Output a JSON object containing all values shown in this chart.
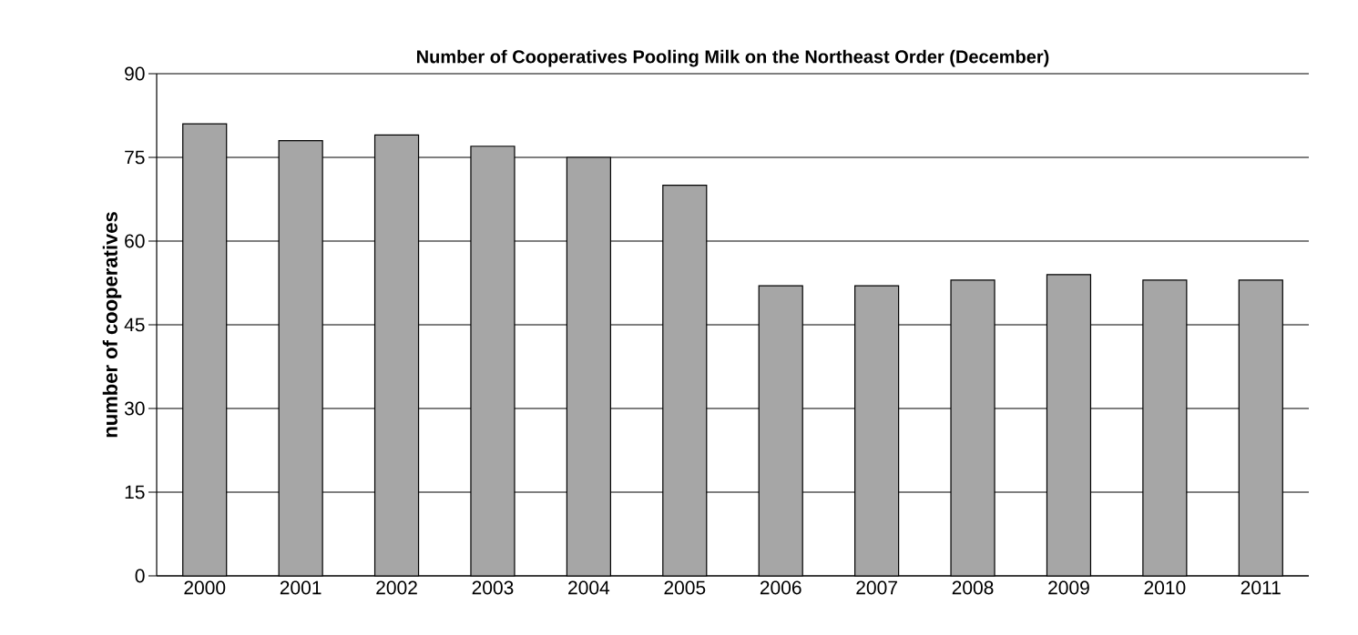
{
  "chart_data": {
    "type": "bar",
    "title": "Number of Cooperatives Pooling Milk on the Northeast Order (December)",
    "ylabel": "number of cooperatives",
    "categories": [
      "2000",
      "2001",
      "2002",
      "2003",
      "2004",
      "2005",
      "2006",
      "2007",
      "2008",
      "2009",
      "2010",
      "2011"
    ],
    "values": [
      81,
      78,
      79,
      77,
      75,
      70,
      52,
      52,
      53,
      54,
      53,
      53
    ],
    "color": "#a6a6a6",
    "ylim": [
      0,
      90
    ],
    "yticks": [
      0,
      15,
      30,
      45,
      60,
      75,
      90
    ],
    "grid": "y"
  }
}
